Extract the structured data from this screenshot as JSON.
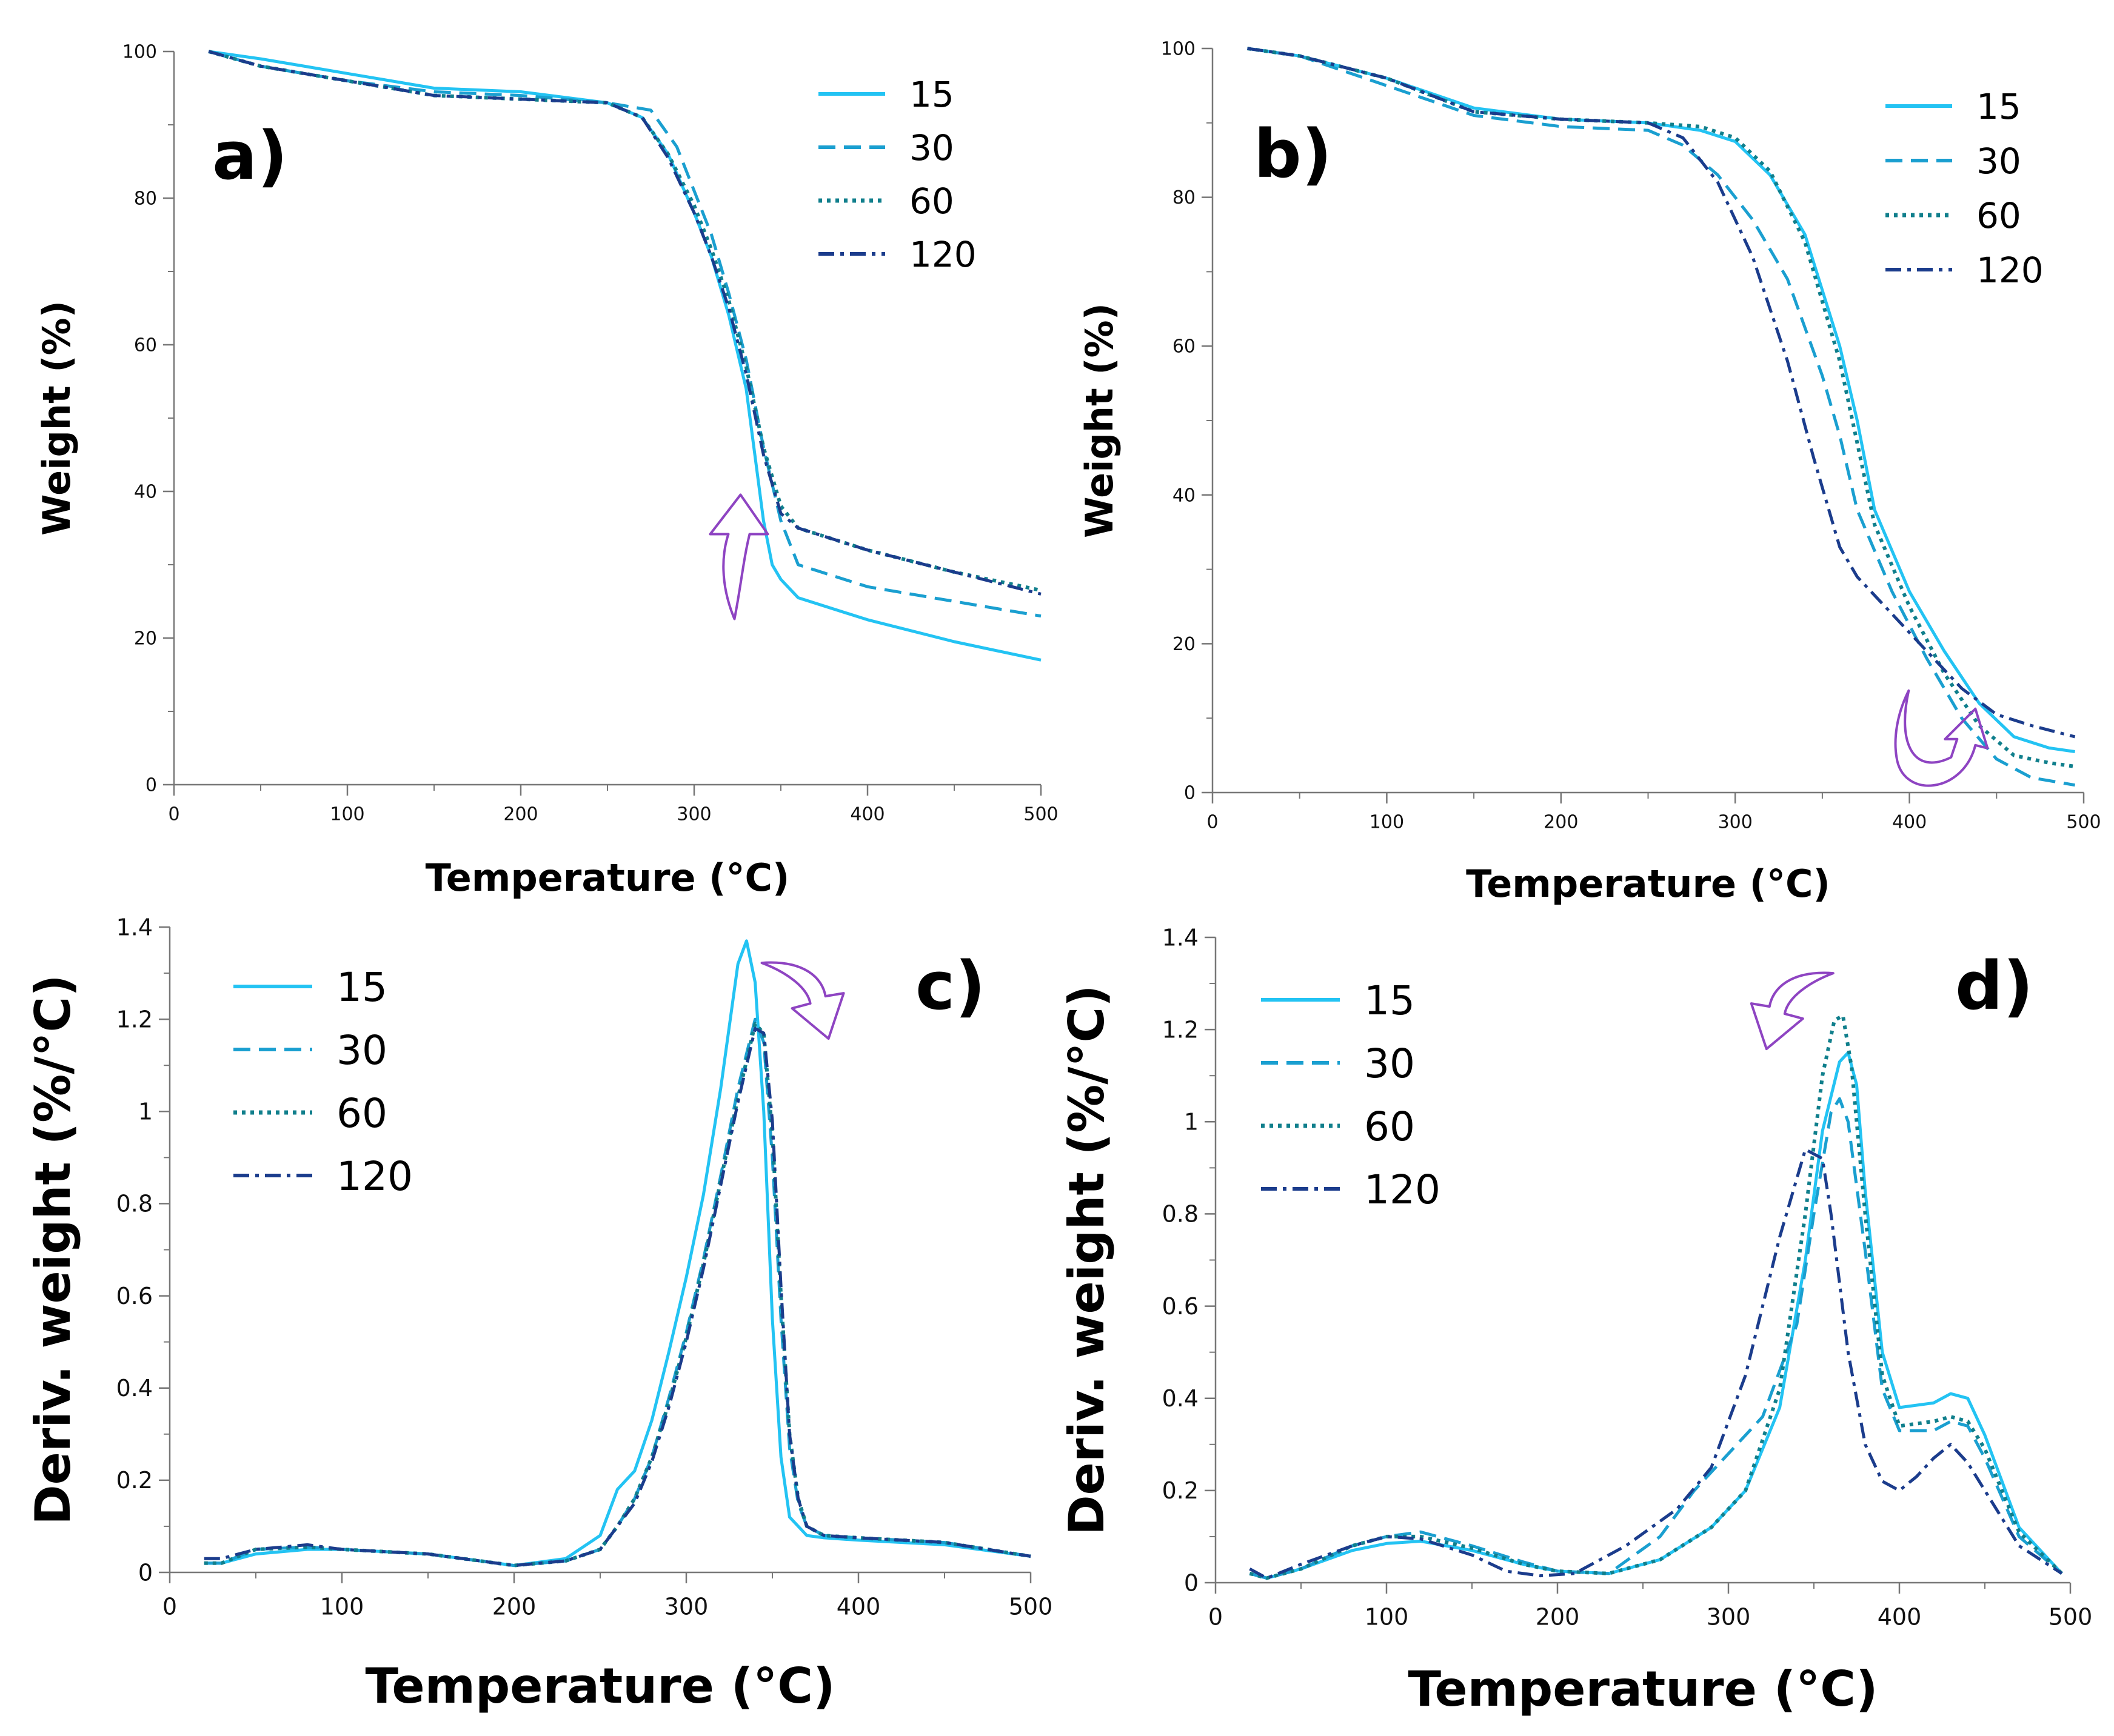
{
  "colors": {
    "s15": "#23c3f3",
    "s30": "#1a9fd0",
    "s60": "#107f8c",
    "s120": "#1b3c8c",
    "arrow": "#8e44c2",
    "axis": "#777777"
  },
  "chart_data": [
    {
      "id": "a",
      "type": "line",
      "panel_label": "a)",
      "xlabel": "Temperature (°C)",
      "ylabel": "Weight (%)",
      "xlim": [
        0,
        500
      ],
      "ylim": [
        0,
        100
      ],
      "xticks": [
        0,
        100,
        200,
        300,
        400,
        500
      ],
      "yticks": [
        0,
        20,
        40,
        60,
        80,
        100
      ],
      "xtick_labels": [
        "0",
        "100",
        "200",
        "300",
        "400",
        "500"
      ],
      "ytick_labels": [
        "0",
        "20",
        "40",
        "60",
        "80",
        "100"
      ],
      "legend": [
        "15",
        "30",
        "60",
        "120"
      ],
      "legend_position": "top-right",
      "annotation": {
        "type": "curved-arrow",
        "direction": "up",
        "x": 318,
        "y": 35
      },
      "series": [
        {
          "name": "15",
          "style": "solid",
          "x": [
            20,
            50,
            100,
            150,
            200,
            250,
            270,
            285,
            300,
            310,
            320,
            330,
            340,
            345,
            350,
            360,
            400,
            450,
            500
          ],
          "y": [
            100,
            99,
            97,
            95,
            94.5,
            93,
            91,
            86,
            78,
            72,
            64,
            54,
            36,
            30,
            28,
            25.5,
            22.5,
            19.5,
            17
          ]
        },
        {
          "name": "30",
          "style": "dashed",
          "x": [
            20,
            50,
            100,
            150,
            200,
            250,
            275,
            290,
            300,
            310,
            320,
            330,
            340,
            350,
            360,
            400,
            450,
            500
          ],
          "y": [
            100,
            98,
            96,
            94.5,
            94,
            93,
            92,
            87,
            81,
            75,
            67,
            58,
            46,
            36,
            30,
            27,
            25,
            23
          ]
        },
        {
          "name": "60",
          "style": "dotted",
          "x": [
            20,
            50,
            100,
            150,
            200,
            250,
            270,
            285,
            300,
            310,
            320,
            330,
            340,
            350,
            360,
            400,
            450,
            500
          ],
          "y": [
            100,
            98,
            96,
            94,
            93.5,
            93,
            91,
            86,
            79,
            73,
            66,
            57,
            46,
            38,
            35,
            32,
            29,
            26.5
          ]
        },
        {
          "name": "120",
          "style": "dashdot",
          "x": [
            20,
            50,
            100,
            150,
            200,
            250,
            270,
            285,
            300,
            310,
            320,
            330,
            340,
            350,
            360,
            400,
            450,
            500
          ],
          "y": [
            100,
            98,
            96,
            94,
            93.5,
            93,
            91,
            85.5,
            78,
            72,
            65,
            56,
            45,
            37,
            35,
            32,
            29,
            26
          ]
        }
      ]
    },
    {
      "id": "b",
      "type": "line",
      "panel_label": "b)",
      "xlabel": "Temperature (°C)",
      "ylabel": "Weight (%)",
      "xlim": [
        0,
        500
      ],
      "ylim": [
        0,
        100
      ],
      "xticks": [
        0,
        100,
        200,
        300,
        400,
        500
      ],
      "yticks": [
        0,
        20,
        40,
        60,
        80,
        100
      ],
      "xtick_labels": [
        "0",
        "100",
        "200",
        "300",
        "400",
        "500"
      ],
      "ytick_labels": [
        "0",
        "20",
        "40",
        "60",
        "80",
        "100"
      ],
      "legend": [
        "15",
        "30",
        "60",
        "120"
      ],
      "legend_position": "top-right",
      "annotation": {
        "type": "curved-arrow",
        "direction": "down-up",
        "x": 410,
        "y": 8
      },
      "series": [
        {
          "name": "15",
          "style": "solid",
          "x": [
            20,
            50,
            100,
            150,
            200,
            250,
            280,
            300,
            320,
            340,
            360,
            370,
            380,
            400,
            420,
            440,
            460,
            480,
            495
          ],
          "y": [
            100,
            99,
            96,
            92,
            90.5,
            90,
            89,
            87.5,
            83,
            75,
            60,
            50,
            38,
            27,
            19,
            12,
            7.5,
            6,
            5.5
          ]
        },
        {
          "name": "30",
          "style": "dashed",
          "x": [
            20,
            50,
            100,
            150,
            200,
            250,
            270,
            290,
            310,
            330,
            350,
            360,
            370,
            390,
            410,
            430,
            450,
            470,
            495
          ],
          "y": [
            100,
            99,
            95,
            91,
            89.5,
            89,
            87,
            83,
            77,
            69,
            56,
            48,
            38,
            27,
            18,
            10,
            4.5,
            2,
            1
          ]
        },
        {
          "name": "60",
          "style": "dotted",
          "x": [
            20,
            50,
            100,
            150,
            200,
            250,
            280,
            300,
            320,
            340,
            360,
            370,
            380,
            400,
            420,
            440,
            460,
            480,
            495
          ],
          "y": [
            100,
            99,
            96,
            91.5,
            90.5,
            90,
            89.5,
            88,
            83.5,
            74,
            58,
            47,
            36,
            25,
            16,
            9,
            5,
            4,
            3.5
          ]
        },
        {
          "name": "120",
          "style": "dashdot",
          "x": [
            20,
            50,
            100,
            150,
            200,
            250,
            270,
            290,
            310,
            330,
            345,
            360,
            370,
            390,
            410,
            430,
            450,
            470,
            495
          ],
          "y": [
            100,
            99,
            96,
            91.5,
            90.5,
            90,
            88,
            82,
            72,
            58,
            45,
            33,
            29,
            24,
            19,
            14,
            10.5,
            9,
            7.5
          ]
        }
      ]
    },
    {
      "id": "c",
      "type": "line",
      "panel_label": "c)",
      "xlabel": "Temperature (°C)",
      "ylabel": "Deriv. weight (%/°C)",
      "xlim": [
        0,
        500
      ],
      "ylim": [
        0,
        1.4
      ],
      "xticks": [
        0,
        100,
        200,
        300,
        400,
        500
      ],
      "yticks": [
        0,
        0.2,
        0.4,
        0.6,
        0.8,
        1.0,
        1.2,
        1.4
      ],
      "xtick_labels": [
        "0",
        "100",
        "200",
        "300",
        "400",
        "500"
      ],
      "ytick_labels": [
        "0",
        "0.2",
        "0.4",
        "0.6",
        "0.8",
        "1",
        "1.2",
        "1.4"
      ],
      "legend": [
        "15",
        "30",
        "60",
        "120"
      ],
      "legend_position": "top-left",
      "annotation": {
        "type": "curved-arrow",
        "direction": "down-right",
        "x": 365,
        "y": 1.25
      },
      "series": [
        {
          "name": "15",
          "style": "solid",
          "x": [
            20,
            30,
            50,
            80,
            100,
            150,
            200,
            230,
            250,
            260,
            270,
            280,
            290,
            300,
            310,
            320,
            330,
            335,
            340,
            345,
            350,
            355,
            360,
            370,
            380,
            400,
            450,
            500
          ],
          "y": [
            0.02,
            0.02,
            0.04,
            0.05,
            0.05,
            0.04,
            0.015,
            0.03,
            0.08,
            0.18,
            0.22,
            0.33,
            0.48,
            0.64,
            0.82,
            1.05,
            1.32,
            1.37,
            1.28,
            1.0,
            0.55,
            0.25,
            0.12,
            0.08,
            0.075,
            0.07,
            0.06,
            0.035
          ]
        },
        {
          "name": "30",
          "style": "dashed",
          "x": [
            20,
            30,
            50,
            80,
            100,
            150,
            200,
            230,
            250,
            260,
            270,
            280,
            290,
            300,
            310,
            320,
            330,
            340,
            345,
            350,
            355,
            360,
            365,
            370,
            380,
            400,
            450,
            500
          ],
          "y": [
            0.02,
            0.02,
            0.05,
            0.055,
            0.05,
            0.04,
            0.015,
            0.025,
            0.05,
            0.1,
            0.16,
            0.25,
            0.38,
            0.52,
            0.68,
            0.86,
            1.05,
            1.2,
            1.15,
            0.9,
            0.55,
            0.27,
            0.15,
            0.1,
            0.08,
            0.075,
            0.065,
            0.035
          ]
        },
        {
          "name": "60",
          "style": "dotted",
          "x": [
            20,
            30,
            50,
            80,
            100,
            150,
            200,
            230,
            250,
            260,
            270,
            280,
            290,
            300,
            310,
            320,
            330,
            340,
            345,
            350,
            355,
            360,
            365,
            370,
            380,
            400,
            450,
            500
          ],
          "y": [
            0.02,
            0.02,
            0.05,
            0.055,
            0.05,
            0.04,
            0.015,
            0.025,
            0.05,
            0.1,
            0.16,
            0.25,
            0.37,
            0.51,
            0.67,
            0.85,
            1.03,
            1.19,
            1.17,
            0.95,
            0.6,
            0.3,
            0.16,
            0.1,
            0.08,
            0.075,
            0.065,
            0.035
          ]
        },
        {
          "name": "120",
          "style": "dashdot",
          "x": [
            20,
            30,
            50,
            80,
            100,
            150,
            200,
            230,
            250,
            260,
            270,
            280,
            290,
            300,
            310,
            320,
            330,
            340,
            345,
            350,
            355,
            360,
            365,
            370,
            380,
            400,
            450,
            500
          ],
          "y": [
            0.03,
            0.03,
            0.05,
            0.06,
            0.05,
            0.04,
            0.015,
            0.025,
            0.05,
            0.1,
            0.15,
            0.24,
            0.36,
            0.5,
            0.66,
            0.84,
            1.02,
            1.18,
            1.17,
            0.98,
            0.62,
            0.3,
            0.16,
            0.1,
            0.08,
            0.075,
            0.065,
            0.035
          ]
        }
      ]
    },
    {
      "id": "d",
      "type": "line",
      "panel_label": "d)",
      "xlabel": "Temperature (°C)",
      "ylabel": "Deriv. weight (%/°C)",
      "xlim": [
        0,
        500
      ],
      "ylim": [
        0,
        1.4
      ],
      "xticks": [
        0,
        100,
        200,
        300,
        400,
        500
      ],
      "yticks": [
        0,
        0.2,
        0.4,
        0.6,
        0.8,
        1.0,
        1.2,
        1.4
      ],
      "xtick_labels": [
        "0",
        "100",
        "200",
        "300",
        "400",
        "500"
      ],
      "ytick_labels": [
        "0",
        "0.2",
        "0.4",
        "0.6",
        "0.8",
        "1",
        "1.2",
        "1.4"
      ],
      "legend": [
        "15",
        "30",
        "60",
        "120"
      ],
      "legend_position": "top-left",
      "annotation": {
        "type": "curved-arrow",
        "direction": "down-left",
        "x": 340,
        "y": 1.25
      },
      "series": [
        {
          "name": "15",
          "style": "solid",
          "x": [
            20,
            30,
            50,
            80,
            100,
            120,
            150,
            180,
            200,
            230,
            260,
            290,
            310,
            330,
            345,
            355,
            365,
            370,
            375,
            380,
            390,
            400,
            420,
            430,
            440,
            450,
            470,
            495
          ],
          "y": [
            0.02,
            0.01,
            0.03,
            0.07,
            0.085,
            0.09,
            0.07,
            0.04,
            0.025,
            0.02,
            0.05,
            0.12,
            0.2,
            0.38,
            0.7,
            0.98,
            1.13,
            1.15,
            1.08,
            0.85,
            0.5,
            0.38,
            0.39,
            0.41,
            0.4,
            0.32,
            0.12,
            0.02
          ]
        },
        {
          "name": "30",
          "style": "dashed",
          "x": [
            20,
            30,
            50,
            80,
            100,
            120,
            150,
            180,
            200,
            230,
            260,
            280,
            300,
            320,
            340,
            350,
            360,
            365,
            370,
            380,
            390,
            400,
            420,
            430,
            440,
            450,
            470,
            495
          ],
          "y": [
            0.02,
            0.01,
            0.03,
            0.08,
            0.1,
            0.11,
            0.08,
            0.045,
            0.025,
            0.02,
            0.1,
            0.2,
            0.28,
            0.36,
            0.56,
            0.8,
            1.02,
            1.05,
            1.0,
            0.72,
            0.42,
            0.33,
            0.33,
            0.35,
            0.34,
            0.27,
            0.1,
            0.02
          ]
        },
        {
          "name": "60",
          "style": "dotted",
          "x": [
            20,
            30,
            50,
            80,
            100,
            120,
            150,
            180,
            200,
            230,
            260,
            290,
            310,
            330,
            345,
            355,
            362,
            367,
            372,
            380,
            390,
            400,
            420,
            430,
            440,
            450,
            470,
            495
          ],
          "y": [
            0.02,
            0.01,
            0.03,
            0.08,
            0.1,
            0.1,
            0.075,
            0.04,
            0.025,
            0.02,
            0.05,
            0.12,
            0.2,
            0.42,
            0.8,
            1.1,
            1.22,
            1.23,
            1.12,
            0.8,
            0.45,
            0.34,
            0.35,
            0.36,
            0.35,
            0.29,
            0.11,
            0.02
          ]
        },
        {
          "name": "120",
          "style": "dashdot",
          "x": [
            20,
            30,
            50,
            80,
            100,
            120,
            150,
            170,
            190,
            210,
            240,
            270,
            290,
            310,
            330,
            345,
            355,
            360,
            370,
            380,
            390,
            400,
            410,
            420,
            430,
            440,
            450,
            470,
            495
          ],
          "y": [
            0.03,
            0.01,
            0.04,
            0.08,
            0.1,
            0.095,
            0.06,
            0.025,
            0.015,
            0.02,
            0.08,
            0.16,
            0.25,
            0.45,
            0.75,
            0.94,
            0.92,
            0.8,
            0.5,
            0.3,
            0.22,
            0.2,
            0.23,
            0.27,
            0.3,
            0.26,
            0.2,
            0.08,
            0.02
          ]
        }
      ]
    }
  ]
}
